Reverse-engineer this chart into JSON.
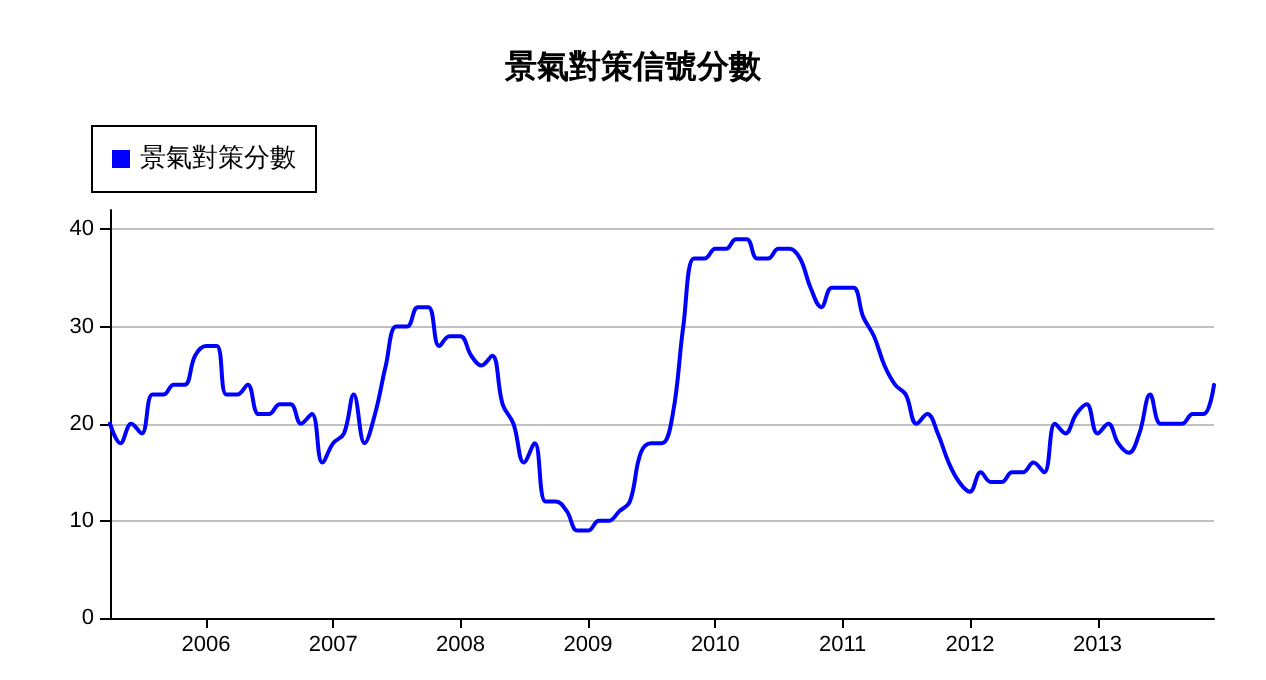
{
  "chart_data": {
    "type": "line",
    "title": "景氣對策信號分數",
    "x": [
      "2005-04",
      "2005-05",
      "2005-06",
      "2005-07",
      "2005-08",
      "2005-09",
      "2005-10",
      "2005-11",
      "2005-12",
      "2006-01",
      "2006-02",
      "2006-03",
      "2006-04",
      "2006-05",
      "2006-06",
      "2006-07",
      "2006-08",
      "2006-09",
      "2006-10",
      "2006-11",
      "2006-12",
      "2007-01",
      "2007-02",
      "2007-03",
      "2007-04",
      "2007-05",
      "2007-06",
      "2007-07",
      "2007-08",
      "2007-09",
      "2007-10",
      "2007-11",
      "2007-12",
      "2008-01",
      "2008-02",
      "2008-03",
      "2008-04",
      "2008-05",
      "2008-06",
      "2008-07",
      "2008-08",
      "2008-09",
      "2008-10",
      "2008-11",
      "2008-12",
      "2009-01",
      "2009-02",
      "2009-03",
      "2009-04",
      "2009-05",
      "2009-06",
      "2009-07",
      "2009-08",
      "2009-09",
      "2009-10",
      "2009-11",
      "2009-12",
      "2010-01",
      "2010-02",
      "2010-03",
      "2010-04",
      "2010-05",
      "2010-06",
      "2010-07",
      "2010-08",
      "2010-09",
      "2010-10",
      "2010-11",
      "2010-12",
      "2011-01",
      "2011-02",
      "2011-03",
      "2011-04",
      "2011-05",
      "2011-06",
      "2011-07",
      "2011-08",
      "2011-09",
      "2011-10",
      "2011-11",
      "2011-12",
      "2012-01",
      "2012-02",
      "2012-03",
      "2012-04",
      "2012-05",
      "2012-06",
      "2012-07",
      "2012-08",
      "2012-09",
      "2012-10",
      "2012-11",
      "2012-12",
      "2013-01",
      "2013-02",
      "2013-03",
      "2013-04",
      "2013-05",
      "2013-06",
      "2013-07",
      "2013-08",
      "2013-09",
      "2013-10",
      "2013-11",
      "2013-12"
    ],
    "series": [
      {
        "name": "景氣對策分數",
        "color": "#0000ff",
        "values": [
          20,
          18,
          20,
          19,
          23,
          23,
          24,
          24,
          27,
          28,
          28,
          23,
          23,
          24,
          21,
          21,
          22,
          22,
          20,
          21,
          16,
          18,
          19,
          23,
          18,
          21,
          26,
          30,
          30,
          32,
          32,
          28,
          29,
          29,
          27,
          26,
          27,
          22,
          20,
          16,
          18,
          12,
          12,
          11,
          9,
          9,
          10,
          10,
          11,
          12,
          17,
          18,
          18,
          21,
          30,
          37,
          37,
          38,
          38,
          39,
          39,
          37,
          37,
          38,
          38,
          37,
          34,
          32,
          34,
          34,
          34,
          31,
          29,
          26,
          24,
          23,
          20,
          21,
          19,
          16,
          14,
          13,
          15,
          14,
          14,
          15,
          15,
          16,
          15,
          20,
          19,
          21,
          22,
          19,
          20,
          18,
          17,
          19,
          23,
          20,
          20,
          20,
          21,
          21,
          24
        ]
      }
    ],
    "xlim": [
      "2005-04",
      "2013-12"
    ],
    "xticks": [
      {
        "value": "2006-01",
        "label": "2006"
      },
      {
        "value": "2007-01",
        "label": "2007"
      },
      {
        "value": "2008-01",
        "label": "2008"
      },
      {
        "value": "2009-01",
        "label": "2009"
      },
      {
        "value": "2010-01",
        "label": "2010"
      },
      {
        "value": "2011-01",
        "label": "2011"
      },
      {
        "value": "2012-01",
        "label": "2012"
      },
      {
        "value": "2013-01",
        "label": "2013"
      }
    ],
    "ylim": [
      0,
      42
    ],
    "yticks": [
      0,
      10,
      20,
      30,
      40
    ],
    "grid": "y",
    "legend": "top left",
    "marker": "none",
    "line_style": "solid"
  }
}
